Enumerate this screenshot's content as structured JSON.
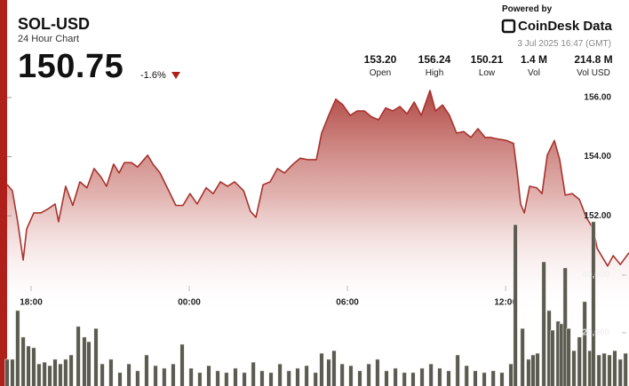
{
  "header": {
    "symbol": "SOL-USD",
    "subtitle": "24 Hour Chart",
    "price": "150.75",
    "change": "-1.6%",
    "powered_by": "Powered by",
    "brand": "CoinDesk Data",
    "timestamp": "3 Jul 2025 16:47 (GMT)",
    "stats": [
      {
        "value": "153.20",
        "label": "Open"
      },
      {
        "value": "156.24",
        "label": "High"
      },
      {
        "value": "150.21",
        "label": "Low"
      },
      {
        "value": "1.4 M",
        "label": "Vol"
      },
      {
        "value": "214.8 M",
        "label": "Vol USD"
      }
    ]
  },
  "chart_data": [
    {
      "type": "area",
      "color": "#a8322d",
      "x": [
        17.09,
        17.29,
        17.49,
        17.7,
        17.83,
        18.1,
        18.37,
        18.67,
        18.91,
        19.04,
        19.31,
        19.58,
        19.85,
        20.12,
        20.39,
        20.66,
        20.86,
        21.13,
        21.34,
        21.54,
        21.81,
        22.04,
        22.42,
        22.62,
        22.89,
        23.22,
        23.49,
        23.76,
        24.03,
        24.3,
        24.64,
        24.91,
        25.18,
        25.45,
        25.72,
        26.06,
        26.32,
        26.53,
        26.8,
        27.07,
        27.34,
        27.61,
        27.94,
        28.21,
        28.48,
        28.82,
        29.02,
        29.29,
        29.56,
        29.83,
        30.1,
        30.37,
        30.64,
        30.91,
        31.18,
        31.45,
        31.72,
        31.99,
        32.26,
        32.53,
        32.8,
        33.13,
        33.34,
        33.61,
        33.87,
        34.14,
        34.41,
        34.68,
        34.95,
        35.22,
        35.43,
        35.69,
        36.03,
        36.3,
        36.44,
        36.57,
        36.71,
        36.91,
        37.18,
        37.38,
        37.58,
        37.85,
        38.05,
        38.26,
        38.53,
        38.8,
        39.06,
        39.33,
        39.47,
        39.67,
        39.87,
        40.08,
        40.35,
        40.68
      ],
      "values": [
        153.06,
        152.85,
        151.8,
        150.5,
        151.55,
        152.1,
        152.1,
        152.25,
        152.4,
        151.8,
        153.0,
        152.35,
        153.15,
        152.95,
        153.6,
        153.3,
        153.0,
        153.75,
        153.45,
        153.8,
        153.8,
        153.65,
        154.05,
        153.75,
        153.45,
        152.85,
        152.35,
        152.35,
        152.75,
        152.4,
        152.95,
        152.75,
        153.15,
        153.0,
        153.15,
        152.85,
        152.15,
        151.95,
        153.05,
        153.15,
        153.6,
        153.45,
        153.75,
        153.95,
        153.9,
        153.9,
        154.8,
        155.4,
        155.95,
        155.75,
        155.4,
        155.55,
        155.55,
        155.35,
        155.25,
        155.65,
        155.55,
        155.7,
        155.45,
        155.85,
        155.4,
        156.24,
        155.55,
        155.75,
        155.4,
        154.8,
        154.85,
        154.65,
        154.95,
        154.65,
        154.65,
        154.6,
        154.55,
        154.45,
        153.45,
        152.4,
        152.1,
        153.0,
        152.95,
        152.75,
        154.05,
        154.55,
        153.9,
        152.7,
        152.75,
        152.55,
        151.95,
        151.55,
        150.9,
        150.6,
        150.3,
        150.65,
        150.35,
        150.75
      ],
      "xlim": [
        17.09,
        40.68
      ],
      "xticks": [
        {
          "value": 18,
          "label": "18:00"
        },
        {
          "value": 24,
          "label": "00:00"
        },
        {
          "value": 30,
          "label": "06:00"
        },
        {
          "value": 36,
          "label": "12:00"
        }
      ],
      "ylim": [
        146.09,
        156.3
      ],
      "yticks": [
        {
          "value": 152,
          "label": "152.00"
        },
        {
          "value": 154,
          "label": "154.00"
        },
        {
          "value": 156,
          "label": "156.00"
        }
      ]
    },
    {
      "type": "bar",
      "color": "#5b5b52",
      "x": [
        17.09,
        17.29,
        17.49,
        17.7,
        17.9,
        18.1,
        18.3,
        18.51,
        18.71,
        18.91,
        19.11,
        19.31,
        19.52,
        19.79,
        20.02,
        20.19,
        20.46,
        20.7,
        21.03,
        21.37,
        21.71,
        22.04,
        22.38,
        22.72,
        23.05,
        23.39,
        23.73,
        24.07,
        24.4,
        24.74,
        25.08,
        25.41,
        25.75,
        26.09,
        26.43,
        26.76,
        27.1,
        27.44,
        27.78,
        28.11,
        28.45,
        28.79,
        29.02,
        29.29,
        29.49,
        29.8,
        30.13,
        30.47,
        30.81,
        31.14,
        31.48,
        31.82,
        32.16,
        32.49,
        32.83,
        33.17,
        33.5,
        33.84,
        34.18,
        34.52,
        34.85,
        35.19,
        35.53,
        35.86,
        36.2,
        36.37,
        36.64,
        36.87,
        37.04,
        37.21,
        37.45,
        37.65,
        37.78,
        37.99,
        38.12,
        38.26,
        38.39,
        38.59,
        38.8,
        39.0,
        39.2,
        39.33,
        39.54,
        39.74,
        39.94,
        40.14,
        40.35,
        40.55
      ],
      "values": [
        10800,
        10800,
        27700,
        18500,
        15400,
        14800,
        9200,
        9800,
        8600,
        10800,
        9200,
        10800,
        12300,
        22200,
        18500,
        16900,
        21500,
        9200,
        10800,
        6200,
        9200,
        6800,
        12300,
        8600,
        7700,
        9200,
        16000,
        7700,
        6200,
        8600,
        6800,
        6200,
        7700,
        6200,
        9800,
        6800,
        6200,
        9200,
        6800,
        7700,
        8600,
        6200,
        12900,
        10800,
        13800,
        9200,
        8600,
        6800,
        9200,
        10800,
        6800,
        7700,
        6200,
        6200,
        7700,
        9200,
        7700,
        6800,
        12300,
        8600,
        6800,
        6200,
        6800,
        6200,
        9200,
        57500,
        21500,
        10800,
        12300,
        12900,
        44600,
        27700,
        20900,
        24000,
        23100,
        42500,
        21500,
        13800,
        18500,
        30800,
        13800,
        58500,
        12300,
        12900,
        12300,
        13800,
        10800,
        12900
      ],
      "xlim": [
        17.09,
        40.68
      ],
      "ylim": [
        0,
        104600
      ],
      "yticks": [
        {
          "value": 20000,
          "label": "20,000"
        },
        {
          "value": 40000,
          "label": "40,000"
        }
      ]
    }
  ]
}
